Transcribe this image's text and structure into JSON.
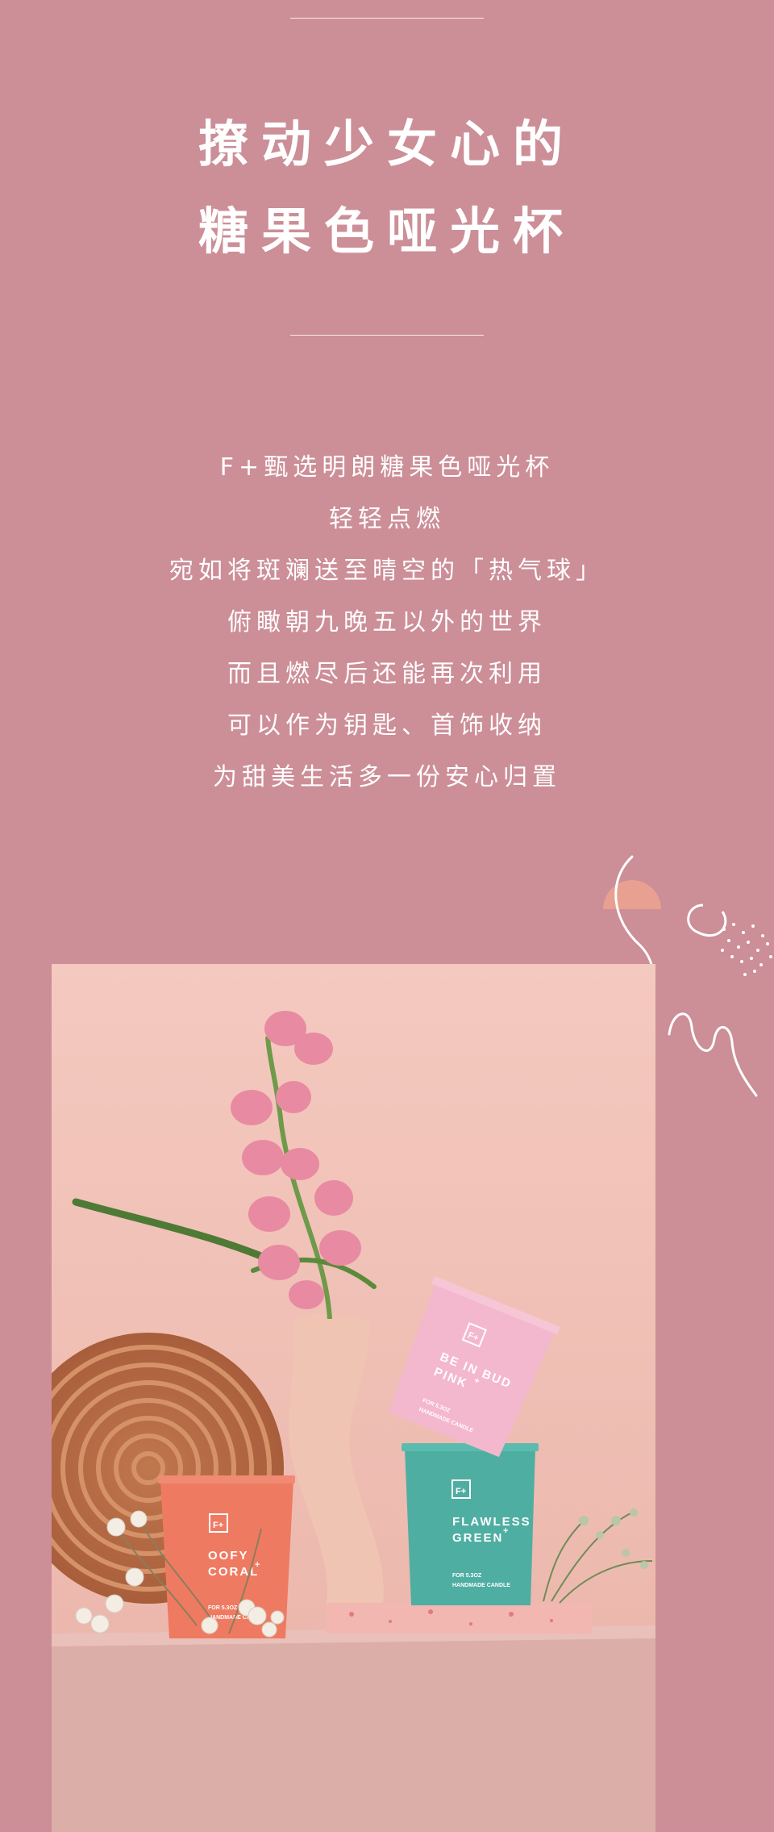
{
  "hero": {
    "title_line1": "撩动少女心的",
    "title_line2": "糖果色哑光杯"
  },
  "description": {
    "lines": [
      "F+甄选明朗糖果色哑光杯",
      "轻轻点燃",
      "宛如将斑斓送至晴空的「热气球」",
      "俯瞰朝九晚五以外的世界",
      "而且燃尽后还能再次利用",
      "可以作为钥匙、首饰收纳",
      "为甜美生活多一份安心归置"
    ]
  },
  "product_photo": {
    "candles": [
      {
        "logo": "F+",
        "name_line1": "OOFY",
        "name_line2": "CORAL",
        "sup": "+",
        "weight": "FOR 5.3OZ",
        "sub": "HANDMADE CANDLE",
        "color": "#ef7a62"
      },
      {
        "logo": "F+",
        "name_line1": "FLAWLESS",
        "name_line2": "GREEN",
        "sup": "+",
        "weight": "FOR 5.3OZ",
        "sub": "HANDMADE CANDLE",
        "color": "#4faea2"
      },
      {
        "logo": "F+",
        "name_line1": "BE IN BUD",
        "name_line2": "PINK",
        "sup": "+",
        "weight": "FOR 5.3OZ",
        "sub": "HANDMADE CANDLE",
        "color": "#f3b8cd"
      }
    ]
  },
  "colors": {
    "background": "#cc8e97",
    "photo_backdrop": "#f2c7bd",
    "coral": "#ef7a62",
    "green": "#4faea2",
    "pink": "#f3b8cd"
  }
}
